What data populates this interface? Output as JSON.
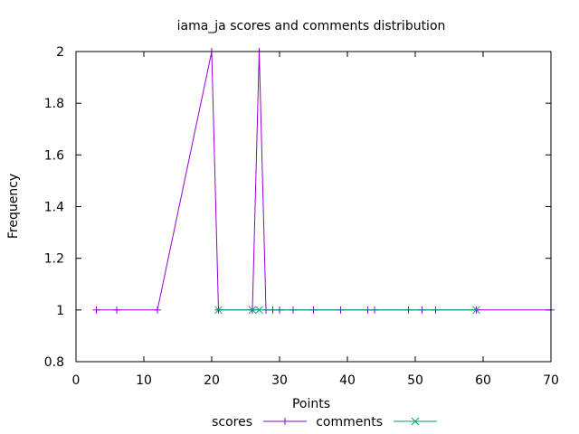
{
  "chart_data": {
    "type": "line",
    "title": "iama_ja scores and comments distribution",
    "xlabel": "Points",
    "ylabel": "Frequency",
    "xlim": [
      0,
      70
    ],
    "ylim": [
      0.8,
      2
    ],
    "xticks": [
      0,
      10,
      20,
      30,
      40,
      50,
      60,
      70
    ],
    "yticks": [
      0.8,
      1,
      1.2,
      1.4,
      1.6,
      1.8,
      2
    ],
    "grid": false,
    "legend_position": "bottom-center",
    "series": [
      {
        "name": "scores",
        "color": "#9400d3",
        "marker": "plus",
        "x": [
          3,
          6,
          12,
          20,
          21,
          26,
          27,
          28,
          29,
          30,
          32,
          35,
          39,
          43,
          44,
          49,
          51,
          53,
          59,
          70
        ],
        "y": [
          1,
          1,
          1,
          2,
          1,
          1,
          2,
          1,
          1,
          1,
          1,
          1,
          1,
          1,
          1,
          1,
          1,
          1,
          1,
          1
        ]
      },
      {
        "name": "comments",
        "color": "#009e73",
        "marker": "cross",
        "x": [
          21,
          26,
          27,
          59
        ],
        "y": [
          1,
          1,
          1,
          1
        ]
      }
    ]
  }
}
